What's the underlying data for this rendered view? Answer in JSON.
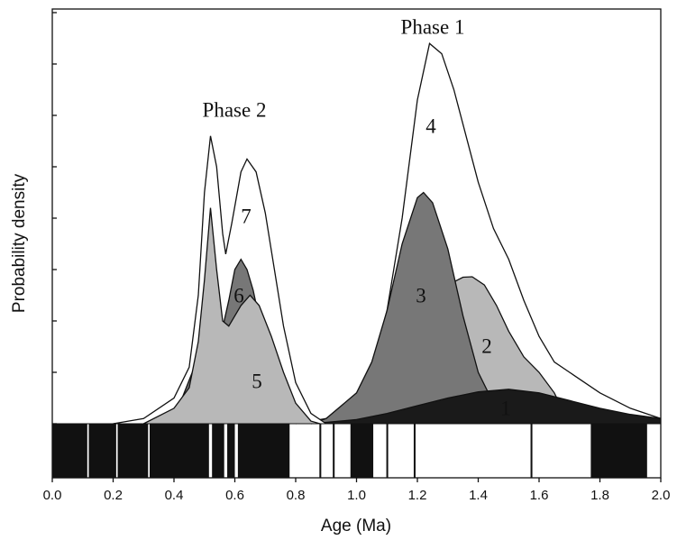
{
  "chart_data": {
    "type": "area",
    "xlabel": "Age (Ma)",
    "ylabel": "Probability density",
    "annotations": [
      "Phase 1",
      "Phase 2"
    ],
    "xlim": [
      0,
      2
    ],
    "ylim": [
      0,
      8.07
    ],
    "xticks": [
      {
        "value": 0,
        "label": "0.0"
      },
      0.2,
      0.4,
      0.6,
      0.8,
      {
        "value": 1,
        "label": "1.0"
      },
      1.2,
      1.4,
      1.6,
      1.8,
      {
        "value": 2,
        "label": "2.0"
      }
    ],
    "yticks": [
      0,
      1,
      2,
      3,
      4,
      5,
      6,
      7,
      8
    ],
    "series": [
      {
        "name": "4",
        "color": "#ffffff",
        "x": [
          0.8,
          0.9,
          1.0,
          1.05,
          1.1,
          1.15,
          1.2,
          1.24,
          1.28,
          1.32,
          1.36,
          1.4,
          1.45,
          1.5,
          1.55,
          1.6,
          1.65,
          1.7,
          1.8,
          1.9,
          2.0
        ],
        "values": [
          0,
          0.1,
          0.5,
          1.1,
          2.2,
          4.0,
          6.3,
          7.4,
          7.2,
          6.5,
          5.6,
          4.7,
          3.8,
          3.2,
          2.4,
          1.7,
          1.2,
          1.0,
          0.6,
          0.3,
          0.1
        ]
      },
      {
        "name": "2",
        "color": "#b8b8b8",
        "x": [
          1.0,
          1.1,
          1.2,
          1.25,
          1.3,
          1.35,
          1.38,
          1.42,
          1.46,
          1.5,
          1.55,
          1.6,
          1.65,
          1.7
        ],
        "values": [
          0,
          0.3,
          1.5,
          2.3,
          2.7,
          2.85,
          2.86,
          2.7,
          2.3,
          1.8,
          1.3,
          1.0,
          0.6,
          0
        ]
      },
      {
        "name": "3",
        "color": "#777777",
        "x": [
          0.85,
          0.9,
          1.0,
          1.05,
          1.1,
          1.15,
          1.2,
          1.22,
          1.25,
          1.3,
          1.35,
          1.4,
          1.45,
          1.5
        ],
        "values": [
          0,
          0.1,
          0.6,
          1.2,
          2.2,
          3.5,
          4.4,
          4.5,
          4.3,
          3.4,
          2.1,
          1.0,
          0.4,
          0
        ]
      },
      {
        "name": "1",
        "color": "#1a1a1a",
        "x": [
          0.85,
          1.0,
          1.1,
          1.2,
          1.3,
          1.4,
          1.5,
          1.6,
          1.7,
          1.8,
          1.9,
          2.0
        ],
        "values": [
          0,
          0.08,
          0.2,
          0.35,
          0.5,
          0.62,
          0.67,
          0.6,
          0.45,
          0.3,
          0.18,
          0.1
        ]
      },
      {
        "name": "7",
        "color": "#ffffff",
        "x": [
          0.2,
          0.3,
          0.4,
          0.45,
          0.48,
          0.5,
          0.52,
          0.54,
          0.56,
          0.57,
          0.59,
          0.62,
          0.64,
          0.67,
          0.7,
          0.73,
          0.76,
          0.8,
          0.85,
          0.9
        ],
        "values": [
          0,
          0.1,
          0.5,
          1.1,
          2.5,
          4.5,
          5.6,
          5.0,
          3.7,
          3.3,
          3.9,
          4.9,
          5.15,
          4.9,
          4.1,
          3.0,
          1.9,
          0.8,
          0.2,
          0
        ]
      },
      {
        "name": "6",
        "color": "#777777",
        "x": [
          0.35,
          0.42,
          0.46,
          0.5,
          0.55,
          0.58,
          0.6,
          0.62,
          0.64,
          0.66,
          0.7,
          0.75
        ],
        "values": [
          0,
          0.4,
          1.0,
          1.3,
          1.6,
          2.4,
          3.0,
          3.2,
          3.0,
          2.6,
          1.5,
          0
        ]
      },
      {
        "name": "5",
        "color": "#b8b8b8",
        "x": [
          0.3,
          0.4,
          0.45,
          0.48,
          0.5,
          0.52,
          0.54,
          0.56,
          0.58,
          0.62,
          0.65,
          0.68,
          0.72,
          0.76,
          0.8,
          0.85,
          0.88
        ],
        "values": [
          0,
          0.3,
          0.7,
          1.6,
          2.8,
          4.2,
          3.0,
          2.0,
          1.9,
          2.3,
          2.5,
          2.3,
          1.7,
          1.0,
          0.4,
          0.05,
          0
        ]
      }
    ],
    "polarity_normal": [
      [
        0.0,
        0.115
      ],
      [
        0.12,
        0.21
      ],
      [
        0.215,
        0.315
      ],
      [
        0.32,
        0.515
      ],
      [
        0.525,
        0.565
      ],
      [
        0.575,
        0.6
      ],
      [
        0.61,
        0.78
      ],
      [
        0.878,
        0.884
      ],
      [
        0.922,
        0.928
      ],
      [
        0.98,
        1.055
      ],
      [
        1.098,
        1.104
      ],
      [
        1.188,
        1.194
      ],
      [
        1.572,
        1.578
      ],
      [
        1.77,
        1.955
      ]
    ]
  }
}
